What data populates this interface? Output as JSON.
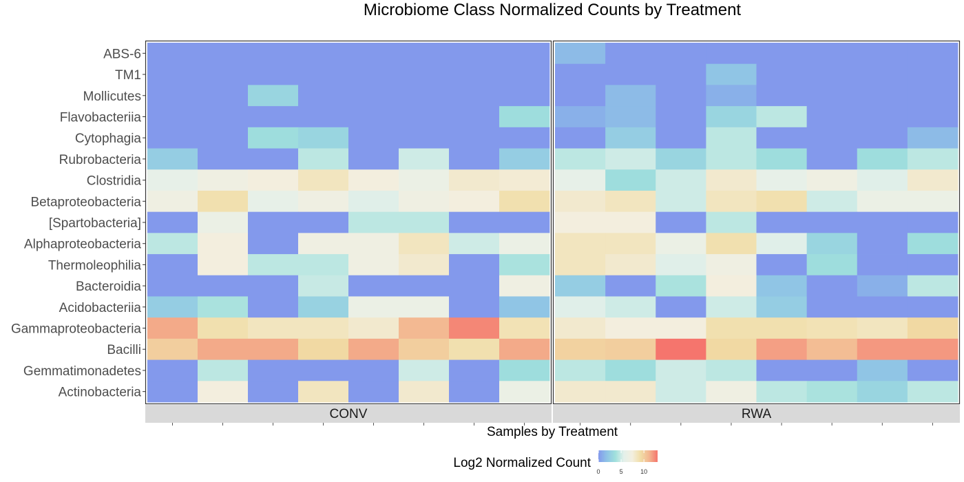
{
  "chart_data": {
    "type": "heatmap",
    "title": "Microbiome Class Normalized Counts by Treatment",
    "xlabel": "Samples by Treatment",
    "ylabel": "",
    "legend": {
      "title": "Log2 Normalized Count",
      "ticks": [
        0,
        5,
        10
      ],
      "range": [
        0,
        13
      ],
      "colors": [
        "#8399ec",
        "#8fc3e6",
        "#a0e0dc",
        "#e3f0ea",
        "#f3efe0",
        "#f1dda6",
        "#f3b690",
        "#f5756d"
      ],
      "placement": "bottom"
    },
    "facets": [
      "CONV",
      "RWA"
    ],
    "samples_per_facet": 8,
    "rows": [
      "ABS-6",
      "TM1",
      "Mollicutes",
      "Flavobacteriia",
      "Cytophagia",
      "Rubrobacteria",
      "Clostridia",
      "Betaproteobacteria",
      "[Spartobacteria]",
      "Alphaproteobacteria",
      "Thermoleophilia",
      "Bacteroidia",
      "Acidobacteriia",
      "Gammaproteobacteria",
      "Bacilli",
      "Gemmatimonadetes",
      "Actinobacteria"
    ],
    "values": {
      "CONV": [
        [
          0,
          0,
          0,
          0,
          0,
          0,
          0,
          0
        ],
        [
          0,
          0,
          0,
          0,
          0,
          0,
          0,
          0
        ],
        [
          0,
          0,
          3,
          0,
          0,
          0,
          0,
          0
        ],
        [
          0,
          0,
          0,
          0,
          0,
          0,
          0,
          3.5
        ],
        [
          0,
          0,
          3.5,
          3,
          0,
          0,
          0,
          0
        ],
        [
          2.5,
          0,
          0,
          4.5,
          0,
          5,
          0,
          2.5
        ],
        [
          6,
          7,
          7.5,
          8.5,
          7.5,
          6.5,
          8,
          7.8
        ],
        [
          7,
          9,
          6,
          7,
          5.5,
          7,
          7.5,
          9
        ],
        [
          0,
          6.5,
          0,
          0,
          4.5,
          4.5,
          0,
          0
        ],
        [
          4.5,
          7.5,
          0,
          7,
          7,
          8.5,
          5,
          6.5
        ],
        [
          0,
          7.5,
          4.5,
          4.5,
          7,
          8,
          0,
          4
        ],
        [
          0,
          0,
          0,
          4.8,
          0,
          0,
          0,
          7
        ],
        [
          2.5,
          4,
          0,
          2.8,
          6.5,
          6.5,
          0,
          2
        ],
        [
          11.5,
          9,
          8.5,
          8.5,
          8,
          11,
          12.5,
          8.8
        ],
        [
          10,
          11.5,
          11.5,
          9.5,
          11.5,
          10,
          9,
          11.5
        ],
        [
          0,
          4.5,
          0,
          0,
          0,
          5,
          0,
          3.5
        ],
        [
          0,
          7.5,
          0,
          8.5,
          0,
          8,
          0,
          6.5
        ]
      ],
      "RWA": [
        [
          1.5,
          0,
          0,
          0,
          0,
          0,
          0,
          0
        ],
        [
          0,
          0,
          0,
          2,
          0,
          0,
          0,
          0
        ],
        [
          0,
          1.5,
          0,
          1,
          0,
          0,
          0,
          0
        ],
        [
          1,
          1.5,
          0,
          3,
          4.5,
          0,
          0,
          0
        ],
        [
          0,
          2.5,
          0,
          4.5,
          0,
          0,
          0,
          1.5
        ],
        [
          4.5,
          5,
          3,
          4.5,
          3.5,
          0,
          3.5,
          4.5
        ],
        [
          6,
          3.5,
          5,
          8,
          6,
          7,
          5.5,
          8
        ],
        [
          8,
          8.5,
          5,
          8.5,
          9,
          5,
          6.5,
          6.5
        ],
        [
          7.5,
          7.5,
          0,
          4.5,
          0,
          0,
          0,
          0
        ],
        [
          8.5,
          8.5,
          6.5,
          9,
          5.5,
          3,
          0,
          3.5
        ],
        [
          8.5,
          8,
          5.5,
          7,
          0,
          3.5,
          0,
          0
        ],
        [
          2.5,
          0,
          4,
          7.5,
          2,
          0,
          1,
          4.5
        ],
        [
          5.5,
          5,
          0,
          5,
          2.5,
          0,
          0,
          0
        ],
        [
          8,
          7.5,
          7.5,
          9,
          9,
          8.8,
          8.5,
          9.5
        ],
        [
          9.8,
          10,
          13,
          9.5,
          11.8,
          10.8,
          12,
          12
        ],
        [
          4.5,
          3.5,
          5,
          4.5,
          0,
          0,
          2,
          0
        ],
        [
          8,
          8,
          5,
          7,
          4.5,
          4,
          3,
          4.5
        ]
      ]
    }
  }
}
